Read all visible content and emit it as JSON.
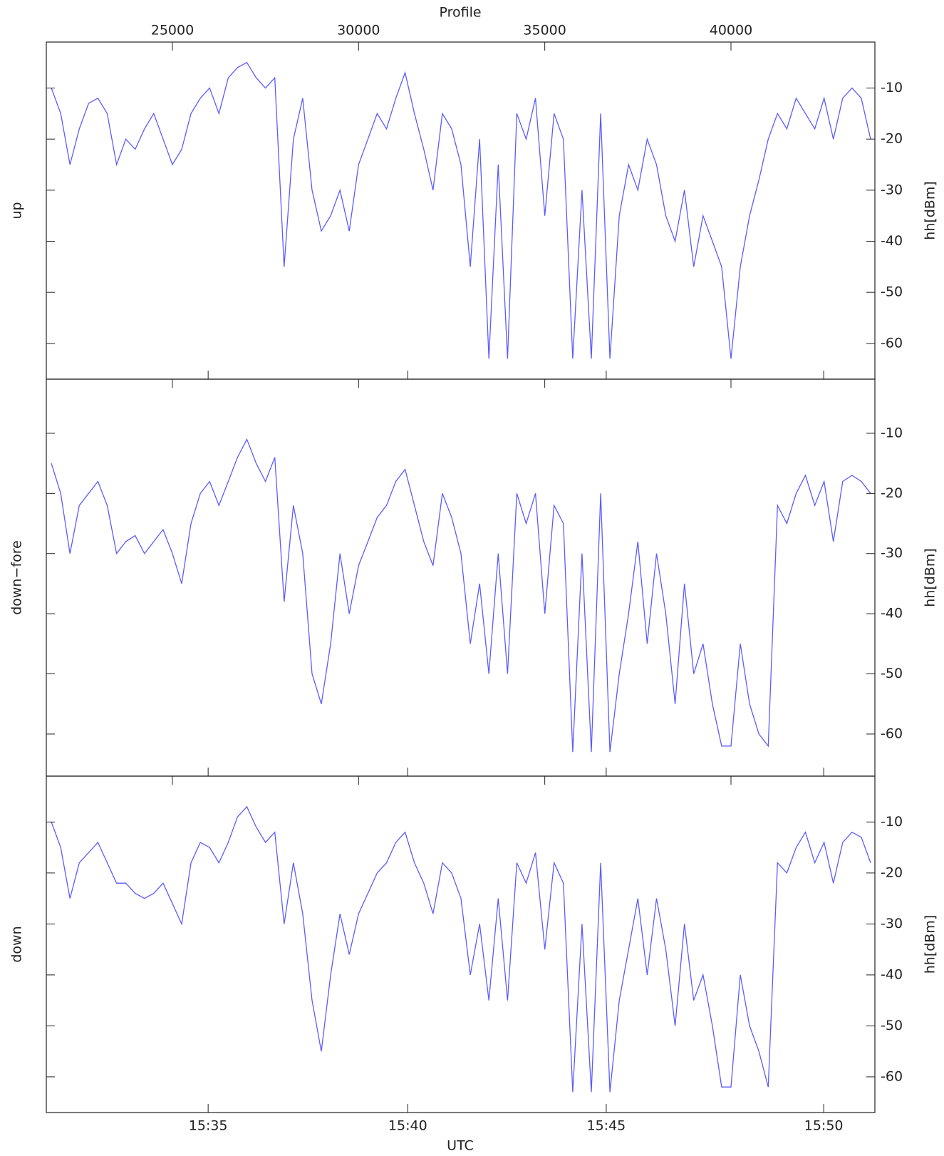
{
  "chart_data": {
    "type": "line",
    "layout": "stacked-panels",
    "x_label_top": "Profile",
    "xlabel": "UTC",
    "ylabel": "hh[dBm]",
    "xlim": [
      21614,
      43865
    ],
    "xticks_top": [
      25000,
      30000,
      35000,
      40000
    ],
    "xticks": [
      {
        "value": 25960,
        "label": "15:35"
      },
      {
        "value": 31320,
        "label": "15:40"
      },
      {
        "value": 36650,
        "label": "15:45"
      },
      {
        "value": 42490,
        "label": "15:50"
      }
    ],
    "ylim": [
      -67,
      -1
    ],
    "yticks": [
      -10,
      -20,
      -30,
      -40,
      -50,
      -60
    ],
    "x": [
      21750,
      22000,
      22250,
      22500,
      22750,
      23000,
      23250,
      23500,
      23750,
      24000,
      24250,
      24500,
      24750,
      25000,
      25250,
      25500,
      25750,
      26000,
      26250,
      26500,
      26750,
      27000,
      27250,
      27500,
      27750,
      28000,
      28250,
      28500,
      28750,
      29000,
      29250,
      29500,
      29750,
      30000,
      30250,
      30500,
      30750,
      31000,
      31250,
      31500,
      31750,
      32000,
      32250,
      32500,
      32750,
      33000,
      33250,
      33500,
      33750,
      34000,
      34250,
      34500,
      34750,
      35000,
      35250,
      35500,
      35750,
      36000,
      36250,
      36500,
      36750,
      37000,
      37250,
      37500,
      37750,
      38000,
      38250,
      38500,
      38750,
      39000,
      39250,
      39500,
      39750,
      40000,
      40250,
      40500,
      40750,
      41000,
      41250,
      41500,
      41750,
      42000,
      42250,
      42500,
      42750,
      43000,
      43250,
      43500,
      43750
    ],
    "series": [
      {
        "name": "up",
        "color": "#5c5cff",
        "values": [
          -10,
          -15,
          -25,
          -18,
          -13,
          -12,
          -15,
          -25,
          -20,
          -22,
          -18,
          -15,
          -20,
          -25,
          -22,
          -15,
          -12,
          -10,
          -15,
          -8,
          -6,
          -5,
          -8,
          -10,
          -8,
          -45,
          -20,
          -12,
          -30,
          -38,
          -35,
          -30,
          -38,
          -25,
          -20,
          -15,
          -18,
          -12,
          -7,
          -15,
          -22,
          -30,
          -15,
          -18,
          -25,
          -45,
          -20,
          -63,
          -25,
          -63,
          -15,
          -20,
          -12,
          -35,
          -15,
          -20,
          -63,
          -30,
          -63,
          -15,
          -63,
          -35,
          -25,
          -30,
          -20,
          -25,
          -35,
          -40,
          -30,
          -45,
          -35,
          -40,
          -45,
          -63,
          -45,
          -35,
          -28,
          -20,
          -15,
          -18,
          -12,
          -15,
          -18,
          -12,
          -20,
          -12,
          -10,
          -12,
          -20
        ]
      },
      {
        "name": "down−fore",
        "color": "#5c5cff",
        "values": [
          -15,
          -20,
          -30,
          -22,
          -20,
          -18,
          -22,
          -30,
          -28,
          -27,
          -30,
          -28,
          -26,
          -30,
          -35,
          -25,
          -20,
          -18,
          -22,
          -18,
          -14,
          -11,
          -15,
          -18,
          -14,
          -38,
          -22,
          -30,
          -50,
          -55,
          -45,
          -30,
          -40,
          -32,
          -28,
          -24,
          -22,
          -18,
          -16,
          -22,
          -28,
          -32,
          -20,
          -24,
          -30,
          -45,
          -35,
          -50,
          -30,
          -50,
          -20,
          -25,
          -20,
          -40,
          -22,
          -25,
          -63,
          -30,
          -63,
          -20,
          -63,
          -50,
          -40,
          -28,
          -45,
          -30,
          -40,
          -55,
          -35,
          -50,
          -45,
          -55,
          -62,
          -62,
          -45,
          -55,
          -60,
          -62,
          -22,
          -25,
          -20,
          -17,
          -22,
          -18,
          -28,
          -18,
          -17,
          -18,
          -20
        ]
      },
      {
        "name": "down",
        "color": "#5c5cff",
        "values": [
          -10,
          -15,
          -25,
          -18,
          -16,
          -14,
          -18,
          -22,
          -22,
          -24,
          -25,
          -24,
          -22,
          -26,
          -30,
          -18,
          -14,
          -15,
          -18,
          -14,
          -9,
          -7,
          -11,
          -14,
          -12,
          -30,
          -18,
          -28,
          -45,
          -55,
          -40,
          -28,
          -36,
          -28,
          -24,
          -20,
          -18,
          -14,
          -12,
          -18,
          -22,
          -28,
          -18,
          -20,
          -25,
          -40,
          -30,
          -45,
          -25,
          -45,
          -18,
          -22,
          -16,
          -35,
          -18,
          -22,
          -63,
          -30,
          -63,
          -18,
          -63,
          -45,
          -35,
          -25,
          -40,
          -25,
          -35,
          -50,
          -30,
          -45,
          -40,
          -50,
          -62,
          -62,
          -40,
          -50,
          -55,
          -62,
          -18,
          -20,
          -15,
          -12,
          -18,
          -14,
          -22,
          -14,
          -12,
          -13,
          -18
        ]
      }
    ]
  }
}
